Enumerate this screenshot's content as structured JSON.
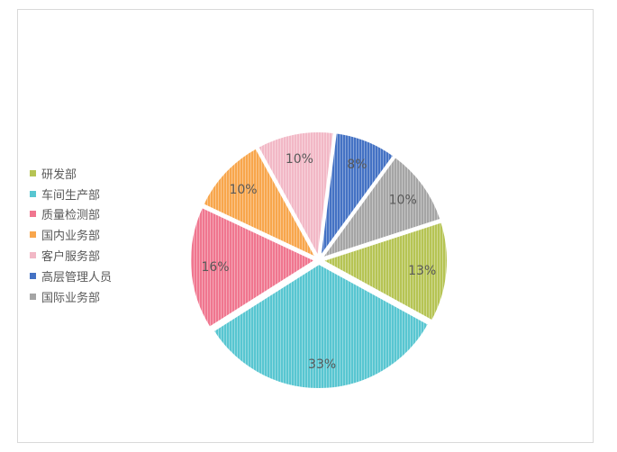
{
  "chart_data": {
    "type": "pie",
    "categories": [
      "研发部",
      "车间生产部",
      "质量检测部",
      "国内业务部",
      "客户服务部",
      "高层管理人员",
      "国际业务部"
    ],
    "values": [
      13,
      33,
      16,
      10,
      10,
      8,
      10
    ],
    "value_labels": [
      "13%",
      "33%",
      "16%",
      "10%",
      "10%",
      "8%",
      "10%"
    ],
    "colors": [
      "#b6c454",
      "#58c6d1",
      "#f0768f",
      "#f8a64c",
      "#f2b8c6",
      "#4472c4",
      "#a5a5a5"
    ],
    "legend_position": "left",
    "label_position": "inside"
  }
}
